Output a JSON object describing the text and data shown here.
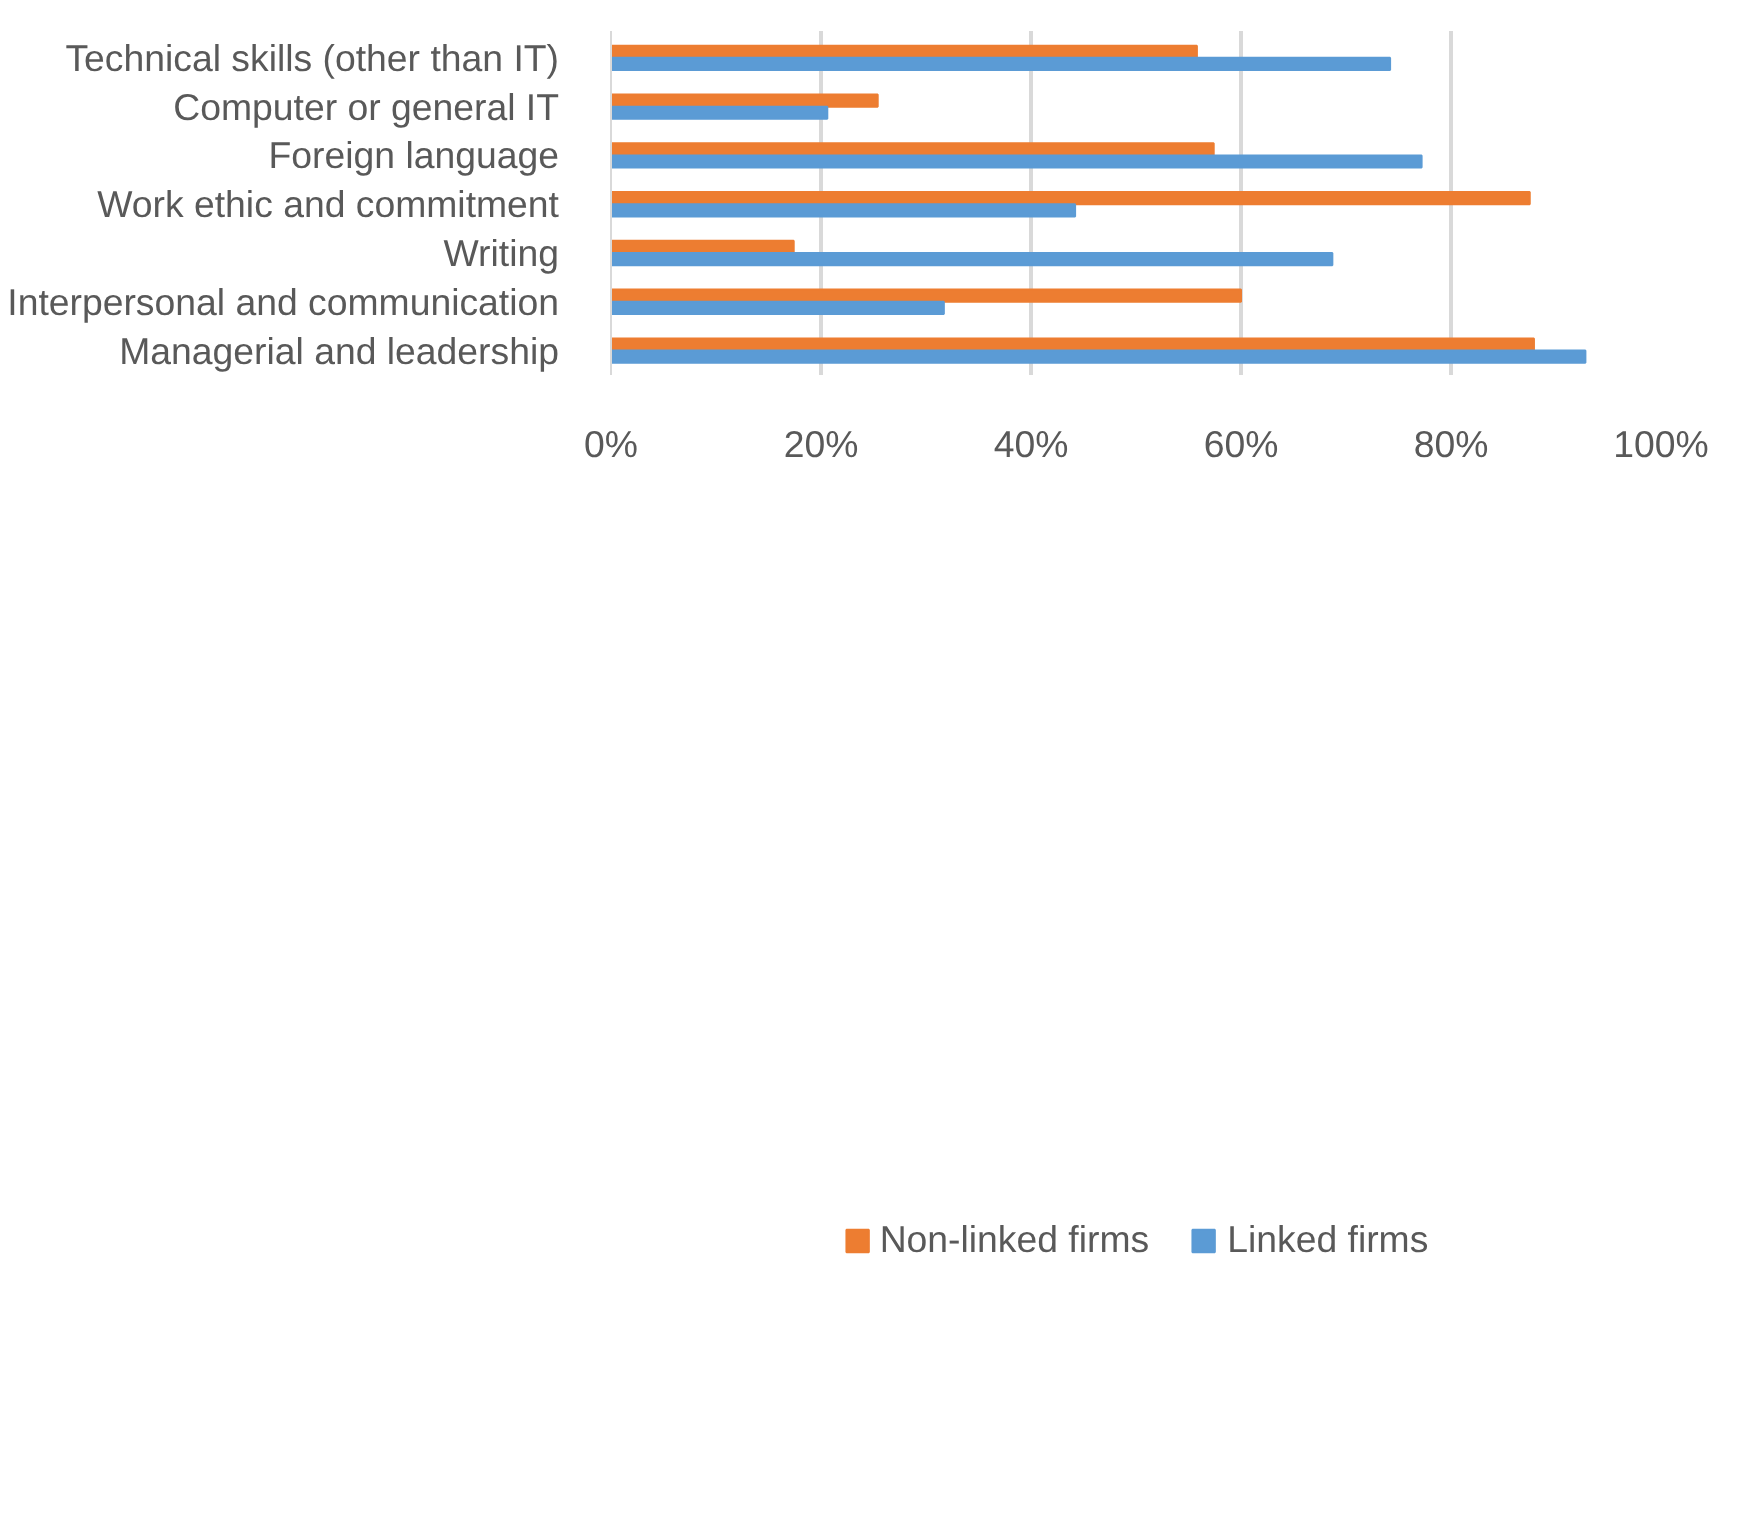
{
  "chart_data": {
    "type": "bar",
    "orientation": "horizontal",
    "categories": [
      "Technical skills (other than IT)",
      "Computer or general IT",
      "Foreign language",
      "Work ethic and commitment",
      "Writing",
      "Interpersonal and communication",
      "Managerial and leadership"
    ],
    "series": [
      {
        "name": "Non-linked firms",
        "color": "#ed7d31",
        "values": [
          0.558,
          0.254,
          0.574,
          0.875,
          0.174,
          0.6,
          0.879
        ]
      },
      {
        "name": "Linked firms",
        "color": "#5b9bd5",
        "values": [
          0.742,
          0.206,
          0.772,
          0.442,
          0.687,
          0.317,
          0.928
        ]
      }
    ],
    "xlim": [
      0,
      1
    ],
    "xticks": [
      {
        "value": 0,
        "label": "0%"
      },
      {
        "value": 0.2,
        "label": "20%"
      },
      {
        "value": 0.4,
        "label": "40%"
      },
      {
        "value": 0.6,
        "label": "60%"
      },
      {
        "value": 0.8,
        "label": "80%"
      },
      {
        "value": 1,
        "label": "100%"
      }
    ],
    "grid": "x",
    "legend": "bottom"
  }
}
